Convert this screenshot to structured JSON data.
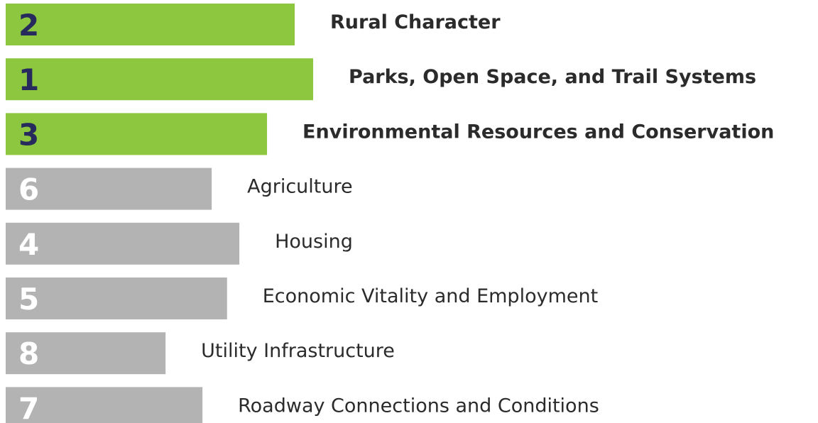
{
  "chart_data": {
    "type": "hbar-rank",
    "ranks": [
      "2",
      "1",
      "3",
      "6",
      "4",
      "5",
      "8",
      "7"
    ],
    "categories": [
      "Rural Character",
      "Parks, Open Space, and Trail Systems",
      "Environmental Resources and Conservation",
      "Agriculture",
      "Housing",
      "Economic Vitality and Employment",
      "Utility Infrastructure",
      "Roadway Connections and Conditions"
    ],
    "values": [
      94,
      100,
      85,
      67,
      76,
      72,
      52,
      64
    ],
    "xlim": [
      0,
      100
    ],
    "colors": [
      "#8dc63f",
      "#8dc63f",
      "#8dc63f",
      "#b3b3b3",
      "#b3b3b3",
      "#b3b3b3",
      "#b3b3b3",
      "#b3b3b3"
    ]
  }
}
